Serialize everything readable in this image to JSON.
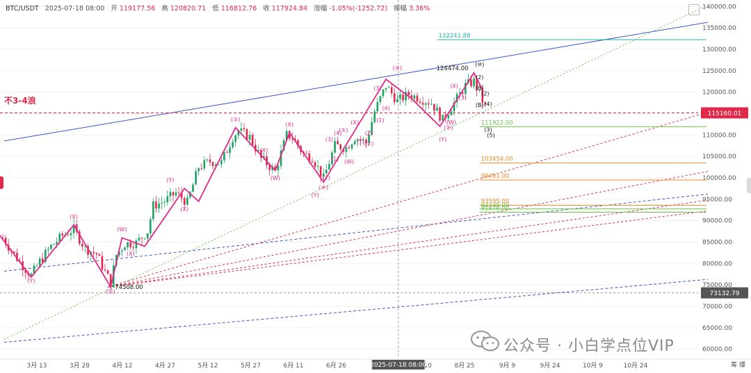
{
  "header": {
    "symbol": "BTC/USDT",
    "datetime": "2025-07-18 08:00",
    "open_label": "开",
    "open": "119177.56",
    "high_label": "高",
    "high": "120820.71",
    "low_label": "低",
    "low": "116812.76",
    "close_label": "收",
    "close": "117924.84",
    "change_label": "涨幅",
    "change": "-1.05%(-1252.72)",
    "amp_label": "振幅",
    "amp": "3.36%"
  },
  "note": "不3-4浪",
  "watermark": "公众号 · 小白学点位VIP",
  "right_toolbar": "筹 爆",
  "colors": {
    "up": "#1aa260",
    "down": "#e0294a",
    "wave": "#e0298a",
    "channel": "#3b55c9",
    "teal": "#22b3a8",
    "orange": "#f08c2a",
    "green_line": "#6cc04a"
  },
  "chart_data": {
    "type": "candlestick",
    "x_ticks": [
      "3月 13",
      "3月 28",
      "4月 12",
      "4月 27",
      "5月 12",
      "5月 27",
      "6月 11",
      "6月 26",
      "8月 10",
      "8月 25",
      "9月 9",
      "9月 24",
      "10月 9",
      "10月 24"
    ],
    "crosshair_date": "2025-07-18 08:00",
    "y_ticks": [
      140000,
      135000,
      130000,
      125000,
      120000,
      115000,
      110000,
      105000,
      100000,
      95000,
      90000,
      85000,
      80000,
      75000,
      70000,
      65000,
      60000
    ],
    "ylim": [
      58000,
      141500
    ],
    "price_tags": {
      "current": "115160.01",
      "crosshair": "73132.79"
    },
    "price_path": [
      [
        "2025-03-01",
        86000
      ],
      [
        "2025-03-04",
        83000
      ],
      [
        "2025-03-08",
        79500
      ],
      [
        "2025-03-11",
        77200
      ],
      [
        "2025-03-14",
        80500
      ],
      [
        "2025-03-18",
        84000
      ],
      [
        "2025-03-22",
        86500
      ],
      [
        "2025-03-26",
        88000
      ],
      [
        "2025-03-30",
        83500
      ],
      [
        "2025-04-03",
        82200
      ],
      [
        "2025-04-06",
        78000
      ],
      [
        "2025-04-08",
        75500
      ],
      [
        "2025-04-10",
        82000
      ],
      [
        "2025-04-13",
        84600
      ],
      [
        "2025-04-17",
        84800
      ],
      [
        "2025-04-21",
        87500
      ],
      [
        "2025-04-23",
        93500
      ],
      [
        "2025-04-27",
        94500
      ],
      [
        "2025-05-01",
        96500
      ],
      [
        "2025-05-05",
        94200
      ],
      [
        "2025-05-09",
        102500
      ],
      [
        "2025-05-13",
        103800
      ],
      [
        "2025-05-17",
        103500
      ],
      [
        "2025-05-21",
        109500
      ],
      [
        "2025-05-23",
        111000
      ],
      [
        "2025-05-27",
        109500
      ],
      [
        "2025-05-31",
        104500
      ],
      [
        "2025-06-05",
        101500
      ],
      [
        "2025-06-09",
        110000
      ],
      [
        "2025-06-11",
        109500
      ],
      [
        "2025-06-15",
        105500
      ],
      [
        "2025-06-18",
        104800
      ],
      [
        "2025-06-22",
        99800
      ],
      [
        "2025-06-26",
        107500
      ],
      [
        "2025-06-30",
        107000
      ],
      [
        "2025-07-03",
        109500
      ],
      [
        "2025-07-07",
        108200
      ],
      [
        "2025-07-10",
        115500
      ],
      [
        "2025-07-14",
        121500
      ],
      [
        "2025-07-18",
        117924.84
      ],
      [
        "2025-07-22",
        119500
      ],
      [
        "2025-07-26",
        118500
      ],
      [
        "2025-07-30",
        117500
      ],
      [
        "2025-08-03",
        113500
      ],
      [
        "2025-08-07",
        117500
      ],
      [
        "2025-08-11",
        121500
      ],
      [
        "2025-08-14",
        122500
      ],
      [
        "2025-08-18",
        116500
      ]
    ],
    "wave_path": [
      [
        "2025-02-28",
        86500
      ],
      [
        "2025-03-11",
        76800
      ],
      [
        "2025-03-26",
        89000
      ],
      [
        "2025-04-08",
        74508
      ],
      [
        "2025-04-12",
        86000
      ],
      [
        "2025-04-20",
        84000
      ],
      [
        "2025-05-04",
        97500
      ],
      [
        "2025-05-09",
        94500
      ],
      [
        "2025-05-22",
        111700
      ],
      [
        "2025-06-05",
        101700
      ],
      [
        "2025-06-10",
        110500
      ],
      [
        "2025-06-22",
        99000
      ],
      [
        "2025-07-14",
        123000
      ],
      [
        "2025-07-23",
        118500
      ],
      [
        "2025-08-02",
        112000
      ],
      [
        "2025-08-14",
        124474
      ],
      [
        "2025-08-17",
        120500
      ]
    ],
    "wave_labels": [
      {
        "text": "(Y)",
        "d": "2025-03-11",
        "p": 75500
      },
      {
        "text": "(X)",
        "d": "2025-03-26",
        "p": 90500
      },
      {
        "text": "(②)",
        "d": "2025-04-08",
        "p": 73000
      },
      {
        "text": "(W)",
        "d": "2025-04-12",
        "p": 87500
      },
      {
        "text": "(X)",
        "d": "2025-04-15",
        "p": 81800
      },
      {
        "text": "(Y)",
        "d": "2025-04-29",
        "p": 99000
      },
      {
        "text": "(X)",
        "d": "2025-05-04",
        "p": 92200
      },
      {
        "text": "(②)",
        "d": "2025-05-22",
        "p": 113200
      },
      {
        "text": "(X)",
        "d": "2025-06-10",
        "p": 112000
      },
      {
        "text": "(W)",
        "d": "2025-06-05",
        "p": 99500
      },
      {
        "text": "(X)",
        "d": "2025-06-01",
        "p": 106000
      },
      {
        "text": "(Y)",
        "d": "2025-06-19",
        "p": 95500
      },
      {
        "text": "(④)",
        "d": "2025-06-22",
        "p": 97300
      },
      {
        "text": "(1)",
        "d": "2025-06-26",
        "p": 104000
      },
      {
        "text": "(2)",
        "d": "2025-06-23",
        "p": 99600
      },
      {
        "text": "(3)",
        "d": "2025-06-24",
        "p": 108500
      },
      {
        "text": "(4)",
        "d": "2025-06-27",
        "p": 110000
      },
      {
        "text": "(⑤)",
        "d": "2025-06-29",
        "p": 110700
      },
      {
        "text": "(W)",
        "d": "2025-07-01",
        "p": 103300
      },
      {
        "text": "(X)",
        "d": "2025-07-03",
        "p": 112500
      },
      {
        "text": "(Y)",
        "d": "2025-07-05",
        "p": 108000
      },
      {
        "text": "(Z)",
        "d": "2025-07-08",
        "p": 110000
      },
      {
        "text": "(②)",
        "d": "2025-07-08",
        "p": 107500
      },
      {
        "text": "(1)",
        "d": "2025-07-12",
        "p": 113000
      },
      {
        "text": "(4)",
        "d": "2025-07-14",
        "p": 115800
      },
      {
        "text": "(3)",
        "d": "2025-07-11",
        "p": 120500
      },
      {
        "text": "(⑧)",
        "d": "2025-07-18",
        "p": 125200
      },
      {
        "text": "(X)",
        "d": "2025-08-07",
        "p": 121000
      },
      {
        "text": "(W)",
        "d": "2025-08-06",
        "p": 112500
      },
      {
        "text": "(Y)",
        "d": "2025-08-03",
        "p": 108500
      },
      {
        "text": "(⑨)",
        "d": "2025-08-05",
        "p": 111300
      },
      {
        "text": "(3)",
        "d": "2025-08-10",
        "p": 118200
      }
    ],
    "black_labels": [
      {
        "text": "(⑩)",
        "d": "2025-08-16",
        "p": 126000
      },
      {
        "text": "(2)",
        "d": "2025-08-16",
        "p": 123000
      },
      {
        "text": "(B)",
        "d": "2025-08-16",
        "p": 120500
      },
      {
        "text": "(2)",
        "d": "2025-08-18",
        "p": 119200
      },
      {
        "text": "(B)",
        "d": "2025-08-16",
        "p": 116500
      },
      {
        "text": "(4)",
        "d": "2025-08-19",
        "p": 116800
      },
      {
        "text": "(3)",
        "d": "2025-08-19",
        "p": 110800
      },
      {
        "text": "(5)",
        "d": "2025-08-20",
        "p": 109500
      }
    ],
    "levels": [
      {
        "value": 132241.88,
        "label": "132241.88",
        "color": "#22b3a8",
        "from": "2025-08-01",
        "to": "2025-11-01"
      },
      {
        "value": 111922,
        "label": "111922.00",
        "color": "#6cc04a",
        "from": "2025-08-16",
        "to": "2025-11-01"
      },
      {
        "value": 103454,
        "label": "103454.00",
        "color": "#f08c2a",
        "from": "2025-08-16",
        "to": "2025-11-01"
      },
      {
        "value": 99491,
        "label": "99491.00",
        "color": "#f08c2a",
        "from": "2025-08-16",
        "to": "2025-11-01"
      },
      {
        "value": 93595,
        "label": "93595.00",
        "color": "#f08c2a",
        "from": "2025-08-16",
        "to": "2025-11-01"
      },
      {
        "value": 92730,
        "label": "92730.00",
        "color": "#6cc04a",
        "from": "2025-08-16",
        "to": "2025-11-01"
      },
      {
        "value": 91970,
        "label": "91970.00",
        "color": "#6cc04a",
        "from": "2025-08-16",
        "to": "2025-11-01"
      }
    ],
    "point_labels": [
      {
        "text": "124474.00",
        "d": "2025-08-14",
        "p": 124474
      },
      {
        "text": "74508.00",
        "d": "2025-04-08",
        "p": 74508
      }
    ],
    "current_price": 115160.01,
    "crosshair_price": 73132.79
  }
}
